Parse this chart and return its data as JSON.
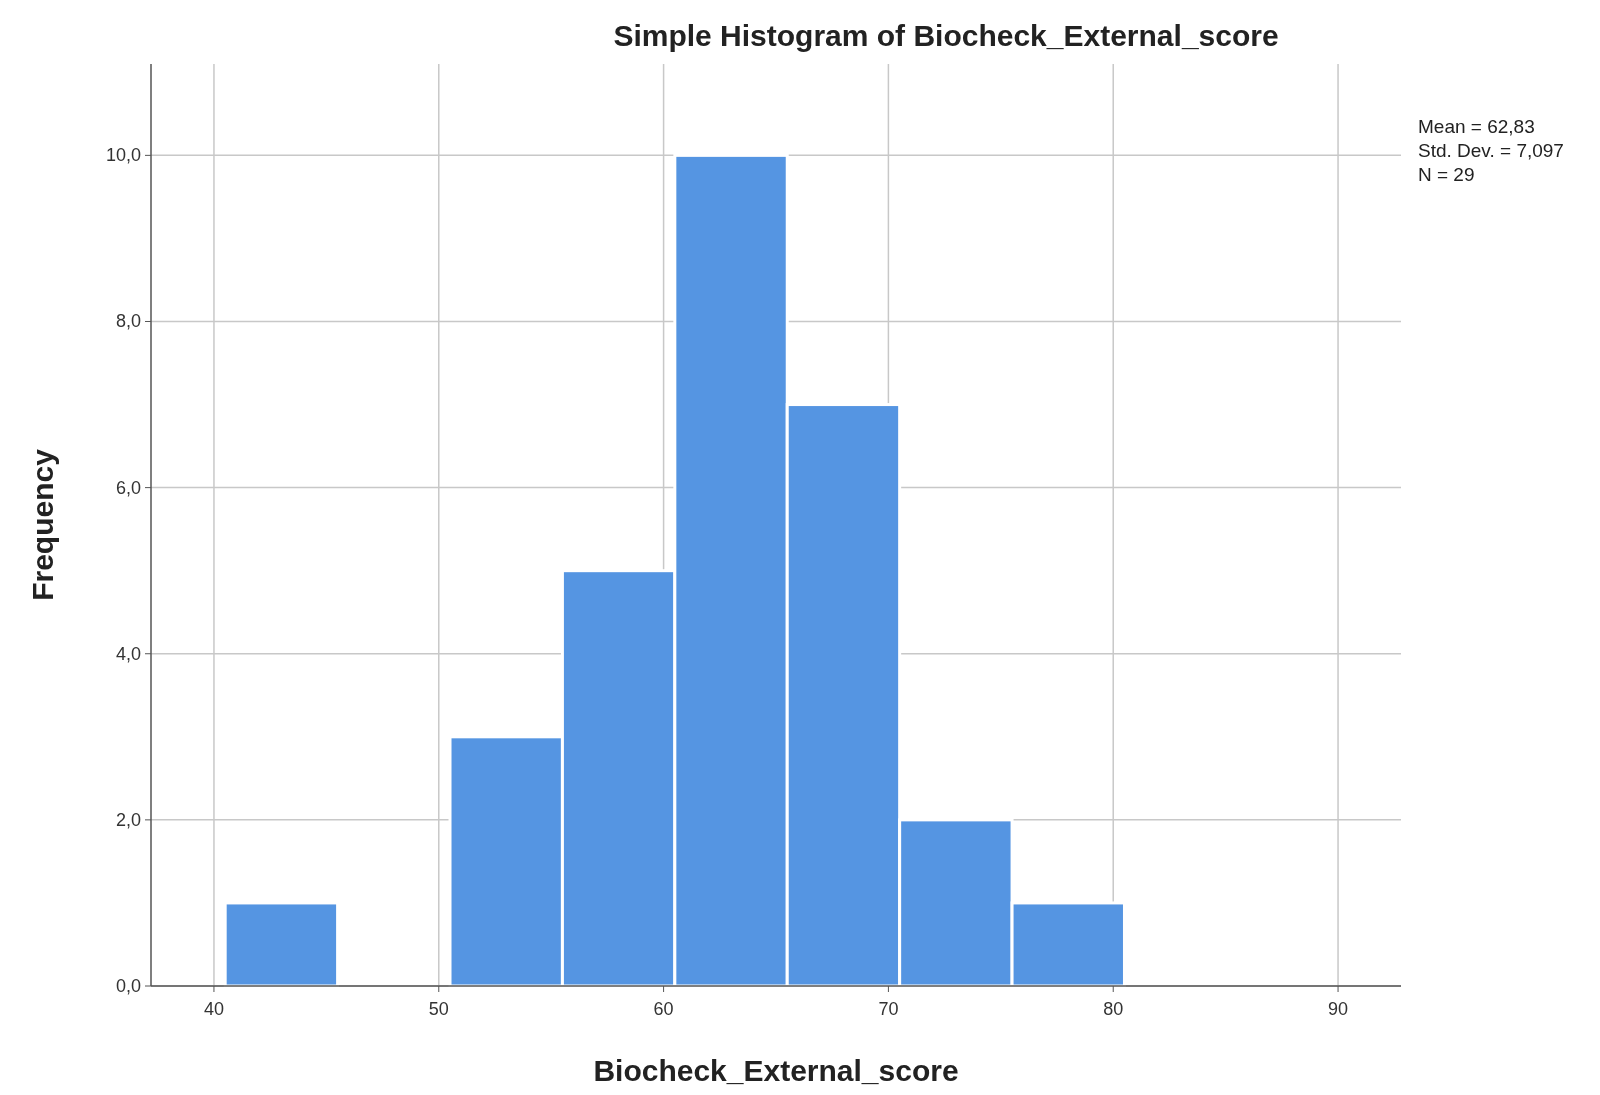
{
  "chart_data": {
    "type": "histogram",
    "title": "Simple Histogram of Biocheck_External_score",
    "xlabel": "Biocheck_External_score",
    "ylabel": "Frequency",
    "bins": [
      40.5,
      45.5,
      50.5,
      55.5,
      60.5,
      65.5,
      70.5,
      75.5,
      80.5
    ],
    "values": [
      1,
      0,
      3,
      5,
      10,
      7,
      2,
      1
    ],
    "color": "#5595e2",
    "xlim": [
      37.2,
      92.8
    ],
    "xticks": [
      40,
      50,
      60,
      70,
      80,
      90
    ],
    "ylim": [
      0,
      11.1
    ],
    "yticks": [
      {
        "value": 0,
        "label": "0,0"
      },
      {
        "value": 2,
        "label": "2,0"
      },
      {
        "value": 4,
        "label": "4,0"
      },
      {
        "value": 6,
        "label": "6,0"
      },
      {
        "value": 8,
        "label": "8,0"
      },
      {
        "value": 10,
        "label": "10,0"
      }
    ],
    "grid": true,
    "annotations": [
      "Mean = 62,83",
      "Std. Dev. = 7,097",
      "N = 29"
    ]
  }
}
